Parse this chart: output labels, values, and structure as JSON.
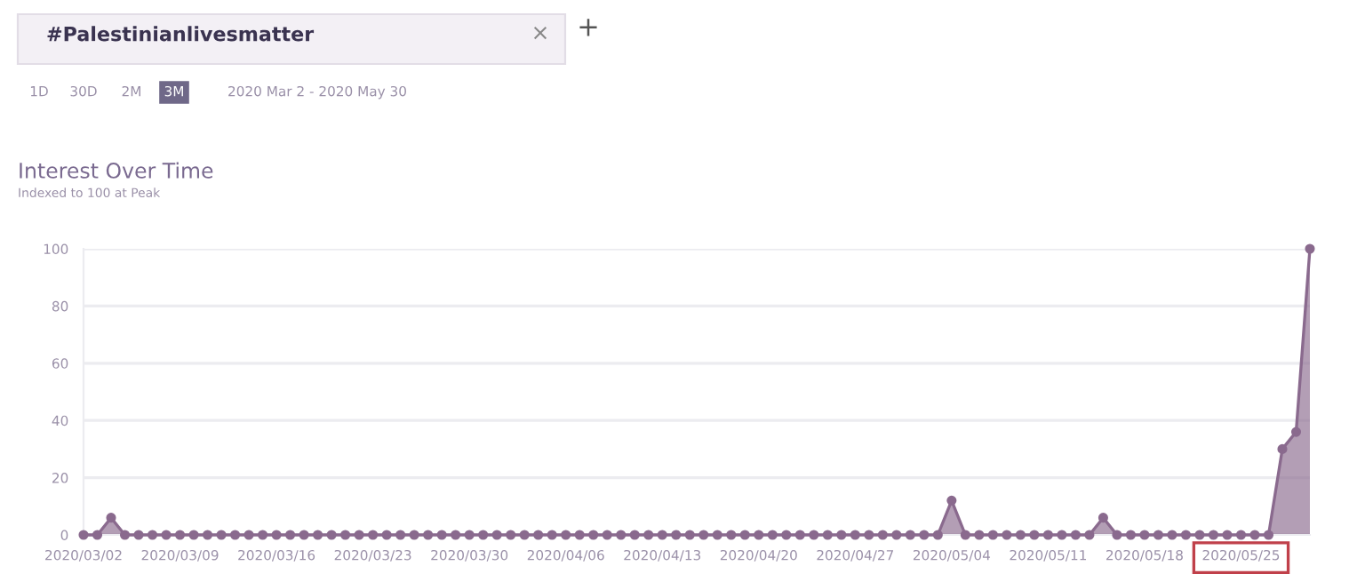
{
  "chart_data": {
    "type": "area",
    "title": "Interest Over Time",
    "subtitle": "Indexed to 100 at Peak",
    "annotations": [
      "#Palestinianlivesmatter",
      "×",
      "+",
      "1D",
      "30D",
      "2M",
      "3M",
      "2020 Mar 2 - 2020 May 30"
    ],
    "x": [
      "2020-03-02",
      "2020-03-03",
      "2020-03-04",
      "2020-03-05",
      "2020-03-06",
      "2020-03-07",
      "2020-03-08",
      "2020-03-09",
      "2020-03-10",
      "2020-03-11",
      "2020-03-12",
      "2020-03-13",
      "2020-03-14",
      "2020-03-15",
      "2020-03-16",
      "2020-03-17",
      "2020-03-18",
      "2020-03-19",
      "2020-03-20",
      "2020-03-21",
      "2020-03-22",
      "2020-03-23",
      "2020-03-24",
      "2020-03-25",
      "2020-03-26",
      "2020-03-27",
      "2020-03-28",
      "2020-03-29",
      "2020-03-30",
      "2020-03-31",
      "2020-04-01",
      "2020-04-02",
      "2020-04-03",
      "2020-04-04",
      "2020-04-05",
      "2020-04-06",
      "2020-04-07",
      "2020-04-08",
      "2020-04-09",
      "2020-04-10",
      "2020-04-11",
      "2020-04-12",
      "2020-04-13",
      "2020-04-14",
      "2020-04-15",
      "2020-04-16",
      "2020-04-17",
      "2020-04-18",
      "2020-04-19",
      "2020-04-20",
      "2020-04-21",
      "2020-04-22",
      "2020-04-23",
      "2020-04-24",
      "2020-04-25",
      "2020-04-26",
      "2020-04-27",
      "2020-04-28",
      "2020-04-29",
      "2020-04-30",
      "2020-05-01",
      "2020-05-02",
      "2020-05-03",
      "2020-05-04",
      "2020-05-05",
      "2020-05-06",
      "2020-05-07",
      "2020-05-08",
      "2020-05-09",
      "2020-05-10",
      "2020-05-11",
      "2020-05-12",
      "2020-05-13",
      "2020-05-14",
      "2020-05-15",
      "2020-05-16",
      "2020-05-17",
      "2020-05-18",
      "2020-05-19",
      "2020-05-20",
      "2020-05-21",
      "2020-05-22",
      "2020-05-23",
      "2020-05-24",
      "2020-05-25",
      "2020-05-26",
      "2020-05-27",
      "2020-05-28",
      "2020-05-29",
      "2020-05-30"
    ],
    "series": [
      {
        "color": "#8a6a8e",
        "values": [
          0,
          0,
          6,
          0,
          0,
          0,
          0,
          0,
          0,
          0,
          0,
          0,
          0,
          0,
          0,
          0,
          0,
          0,
          0,
          0,
          0,
          0,
          0,
          0,
          0,
          0,
          0,
          0,
          0,
          0,
          0,
          0,
          0,
          0,
          0,
          0,
          0,
          0,
          0,
          0,
          0,
          0,
          0,
          0,
          0,
          0,
          0,
          0,
          0,
          0,
          0,
          0,
          0,
          0,
          0,
          0,
          0,
          0,
          0,
          0,
          0,
          0,
          0,
          12,
          0,
          0,
          0,
          0,
          0,
          0,
          0,
          0,
          0,
          0,
          6,
          0,
          0,
          0,
          0,
          0,
          0,
          0,
          0,
          0,
          0,
          0,
          0,
          30,
          36,
          100
        ]
      }
    ],
    "xlim": [
      "2020-03-02",
      "2020-05-30"
    ],
    "xticks": [
      {
        "value": "2020-03-02",
        "label": "2020/03/02"
      },
      {
        "value": "2020-03-09",
        "label": "2020/03/09"
      },
      {
        "value": "2020-03-16",
        "label": "2020/03/16"
      },
      {
        "value": "2020-03-23",
        "label": "2020/03/23"
      },
      {
        "value": "2020-03-30",
        "label": "2020/03/30"
      },
      {
        "value": "2020-04-06",
        "label": "2020/04/06"
      },
      {
        "value": "2020-04-13",
        "label": "2020/04/13"
      },
      {
        "value": "2020-04-20",
        "label": "2020/04/20"
      },
      {
        "value": "2020-04-27",
        "label": "2020/04/27"
      },
      {
        "value": "2020-05-04",
        "label": "2020/05/04"
      },
      {
        "value": "2020-05-11",
        "label": "2020/05/11"
      },
      {
        "value": "2020-05-18",
        "label": "2020/05/18"
      },
      {
        "value": "2020-05-25",
        "label": "2020/05/25"
      }
    ],
    "ylim": [
      0,
      100
    ],
    "yticks": [
      0,
      20,
      40,
      60,
      80,
      100
    ],
    "grid": "y",
    "marker": "circle",
    "line_style": "solid"
  }
}
